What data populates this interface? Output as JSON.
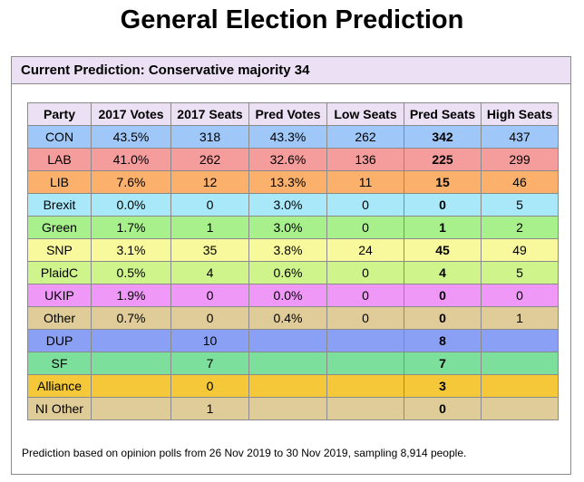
{
  "page": {
    "title": "General Election Prediction"
  },
  "prediction": {
    "header": "Current Prediction: Conservative majority 34",
    "footnote": "Prediction based on opinion polls from 26 Nov 2019 to 30 Nov 2019, sampling 8,914 people."
  },
  "table": {
    "columns": [
      "Party",
      "2017 Votes",
      "2017 Seats",
      "Pred Votes",
      "Low Seats",
      "Pred Seats",
      "High Seats"
    ],
    "rows": [
      {
        "color": "#9fc8f8",
        "cells": [
          "CON",
          "43.5%",
          "318",
          "43.3%",
          "262",
          "342",
          "437"
        ]
      },
      {
        "color": "#f59c9c",
        "cells": [
          "LAB",
          "41.0%",
          "262",
          "32.6%",
          "136",
          "225",
          "299"
        ]
      },
      {
        "color": "#fbb06b",
        "cells": [
          "LIB",
          "7.6%",
          "12",
          "13.3%",
          "11",
          "15",
          "46"
        ]
      },
      {
        "color": "#a8e8f8",
        "cells": [
          "Brexit",
          "0.0%",
          "0",
          "3.0%",
          "0",
          "0",
          "5"
        ]
      },
      {
        "color": "#a8f08c",
        "cells": [
          "Green",
          "1.7%",
          "1",
          "3.0%",
          "0",
          "1",
          "2"
        ]
      },
      {
        "color": "#f8f89c",
        "cells": [
          "SNP",
          "3.1%",
          "35",
          "3.8%",
          "24",
          "45",
          "49"
        ]
      },
      {
        "color": "#d0f48c",
        "cells": [
          "PlaidC",
          "0.5%",
          "4",
          "0.6%",
          "0",
          "4",
          "5"
        ]
      },
      {
        "color": "#f098f8",
        "cells": [
          "UKIP",
          "1.9%",
          "0",
          "0.0%",
          "0",
          "0",
          "0"
        ]
      },
      {
        "color": "#e0cc98",
        "cells": [
          "Other",
          "0.7%",
          "0",
          "0.4%",
          "0",
          "0",
          "1"
        ]
      },
      {
        "color": "#8aa0f4",
        "cells": [
          "DUP",
          "",
          "10",
          "",
          "",
          "8",
          ""
        ]
      },
      {
        "color": "#7ce09c",
        "cells": [
          "SF",
          "",
          "7",
          "",
          "",
          "7",
          ""
        ]
      },
      {
        "color": "#f4c838",
        "cells": [
          "Alliance",
          "",
          "0",
          "",
          "",
          "3",
          ""
        ]
      },
      {
        "color": "#e0cc98",
        "cells": [
          "NI Other",
          "",
          "1",
          "",
          "",
          "0",
          ""
        ]
      }
    ]
  }
}
